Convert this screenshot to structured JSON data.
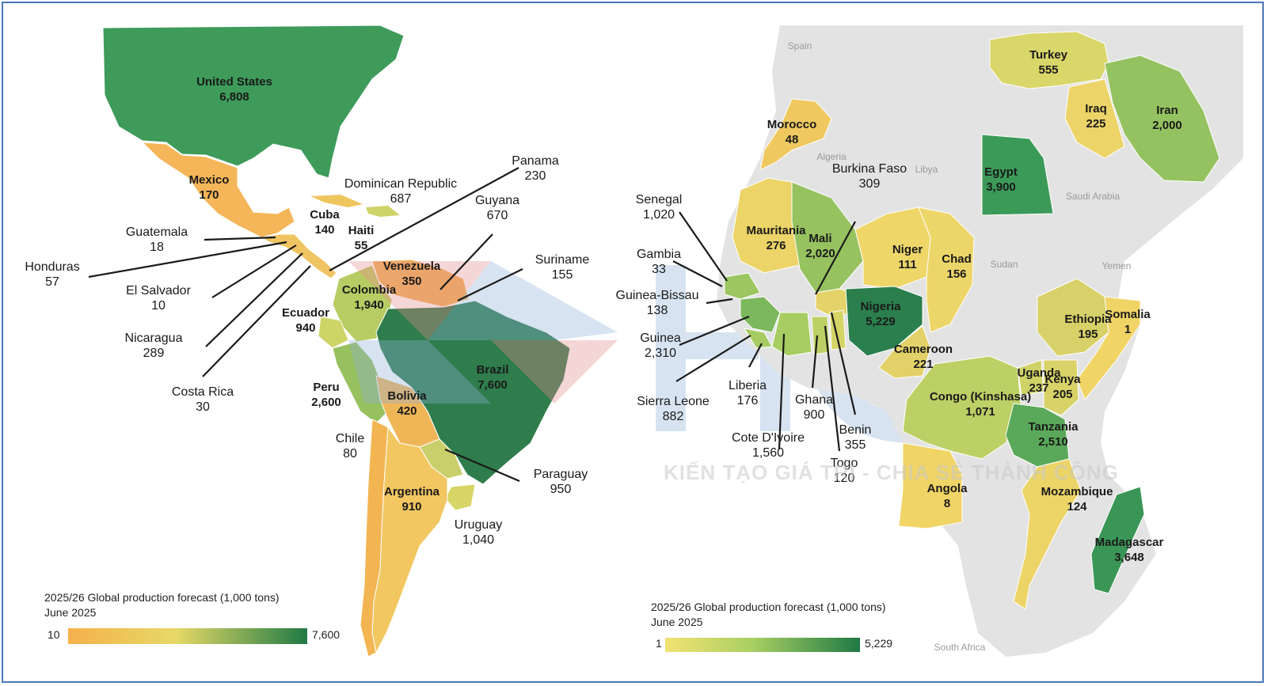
{
  "americas_map": {
    "legend": {
      "title": "2025/26 Global production forecast (1,000 tons)",
      "date": "June 2025",
      "min": "10",
      "max": "7,600",
      "color_low": "#f5b24a",
      "color_high": "#1f7a45"
    },
    "countries": [
      {
        "name": "United States",
        "value": "6,808"
      },
      {
        "name": "Mexico",
        "value": "170"
      },
      {
        "name": "Dominican Republic",
        "value": "687"
      },
      {
        "name": "Cuba",
        "value": "140"
      },
      {
        "name": "Haiti",
        "value": "55"
      },
      {
        "name": "Panama",
        "value": "230"
      },
      {
        "name": "Guyana",
        "value": "670"
      },
      {
        "name": "Guatemala",
        "value": "18"
      },
      {
        "name": "Honduras",
        "value": "57"
      },
      {
        "name": "Suriname",
        "value": "155"
      },
      {
        "name": "Venezuela",
        "value": "350"
      },
      {
        "name": "El Salvador",
        "value": "10"
      },
      {
        "name": "Colombia",
        "value": "1,940"
      },
      {
        "name": "Ecuador",
        "value": "940"
      },
      {
        "name": "Nicaragua",
        "value": "289"
      },
      {
        "name": "Brazil",
        "value": "7,600"
      },
      {
        "name": "Costa Rica",
        "value": "30"
      },
      {
        "name": "Peru",
        "value": "2,600"
      },
      {
        "name": "Bolivia",
        "value": "420"
      },
      {
        "name": "Chile",
        "value": "80"
      },
      {
        "name": "Paraguay",
        "value": "950"
      },
      {
        "name": "Argentina",
        "value": "910"
      },
      {
        "name": "Uruguay",
        "value": "1,040"
      }
    ]
  },
  "africa_map": {
    "legend": {
      "title": "2025/26 Global production forecast (1,000 tons)",
      "date": "June 2025",
      "min": "1",
      "max": "5,229",
      "color_low": "#eedd6a",
      "color_high": "#1f7a45"
    },
    "countries": [
      {
        "name": "Turkey",
        "value": "555"
      },
      {
        "name": "Iraq",
        "value": "225"
      },
      {
        "name": "Iran",
        "value": "2,000"
      },
      {
        "name": "Morocco",
        "value": "48"
      },
      {
        "name": "Egypt",
        "value": "3,900"
      },
      {
        "name": "Burkina Faso",
        "value": "309"
      },
      {
        "name": "Senegal",
        "value": "1,020"
      },
      {
        "name": "Mauritania",
        "value": "276"
      },
      {
        "name": "Mali",
        "value": "2,020"
      },
      {
        "name": "Niger",
        "value": "111"
      },
      {
        "name": "Chad",
        "value": "156"
      },
      {
        "name": "Gambia",
        "value": "33"
      },
      {
        "name": "Guinea-Bissau",
        "value": "138"
      },
      {
        "name": "Nigeria",
        "value": "5,229"
      },
      {
        "name": "Ethiopia",
        "value": "195"
      },
      {
        "name": "Somalia",
        "value": "1"
      },
      {
        "name": "Guinea",
        "value": "2,310"
      },
      {
        "name": "Cameroon",
        "value": "221"
      },
      {
        "name": "Uganda",
        "value": "237"
      },
      {
        "name": "Kenya",
        "value": "205"
      },
      {
        "name": "Sierra Leone",
        "value": "882"
      },
      {
        "name": "Liberia",
        "value": "176"
      },
      {
        "name": "Ghana",
        "value": "900"
      },
      {
        "name": "Congo (Kinshasa)",
        "value": "1,071"
      },
      {
        "name": "Benin",
        "value": "355"
      },
      {
        "name": "Tanzania",
        "value": "2,510"
      },
      {
        "name": "Cote D'Ivoire",
        "value": "1,560"
      },
      {
        "name": "Togo",
        "value": "120"
      },
      {
        "name": "Angola",
        "value": "8"
      },
      {
        "name": "Mozambique",
        "value": "124"
      },
      {
        "name": "Madagascar",
        "value": "3,648"
      }
    ],
    "basemap_labels": [
      "Spain",
      "Algeria",
      "Libya",
      "Saudi Arabia",
      "Sudan",
      "Yemen",
      "South Africa"
    ]
  },
  "watermark": {
    "text": "KIẾN TẠO GIÁ TRỊ - CHIA SẺ THÀNH CÔNG",
    "logo": "HCT"
  }
}
